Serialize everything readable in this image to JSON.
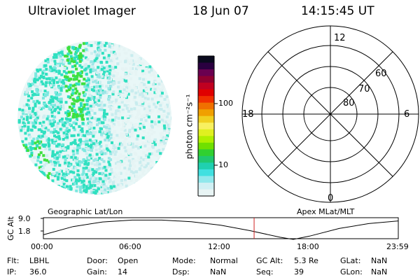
{
  "header": {
    "instrument": "Ultraviolet Imager",
    "date": "18 Jun 07",
    "time": "14:15:45 UT"
  },
  "colorbar": {
    "unit_label": "photon cm⁻²s⁻¹",
    "ticks": [
      "100",
      "10"
    ]
  },
  "polar_grid": {
    "mlt_labels": {
      "top": "12",
      "left": "18",
      "right": "6",
      "bottom": "0"
    },
    "lat_labels": [
      "60",
      "70",
      "80"
    ]
  },
  "timeline": {
    "left_label": "Geographic Lat/Lon",
    "right_label": "Apex MLat/MLT",
    "axis_label": "GC Alt",
    "y_ticks": [
      "9.0",
      "1.8"
    ],
    "x_ticks": [
      "00:00",
      "06:00",
      "12:00",
      "18:00",
      "23:59"
    ],
    "marker_time": "14:15",
    "chart_data": {
      "type": "line",
      "xlabel": "",
      "ylabel": "GC Alt",
      "ylim": [
        1.8,
        9.0
      ],
      "xlim_hours": [
        0,
        24
      ],
      "x_hours": [
        0,
        2,
        4,
        6,
        8,
        10,
        12,
        14,
        16,
        16.9,
        18,
        20,
        22,
        24
      ],
      "values": [
        3.5,
        6.5,
        8.2,
        8.9,
        8.9,
        8.3,
        7.0,
        5.0,
        2.6,
        1.8,
        3.0,
        5.8,
        7.6,
        8.6
      ]
    }
  },
  "info": {
    "row1": [
      {
        "label": "Flt:",
        "value": "LBHL"
      },
      {
        "label": "Door:",
        "value": "Open"
      },
      {
        "label": "Mode:",
        "value": "Normal"
      },
      {
        "label": "GC Alt:",
        "value": "5.3 Re"
      },
      {
        "label": "GLat:",
        "value": "NaN"
      }
    ],
    "row2": [
      {
        "label": "IP:",
        "value": "36.0"
      },
      {
        "label": "Gain:",
        "value": "14"
      },
      {
        "label": "Dsp:",
        "value": "NaN"
      },
      {
        "label": "Seq:",
        "value": "39"
      },
      {
        "label": "GLon:",
        "value": "NaN"
      }
    ]
  },
  "colors": {
    "teal": "#2fe0c0",
    "green": "#3fe03f",
    "pale": "#cfeef0",
    "marker": "#d02020"
  }
}
